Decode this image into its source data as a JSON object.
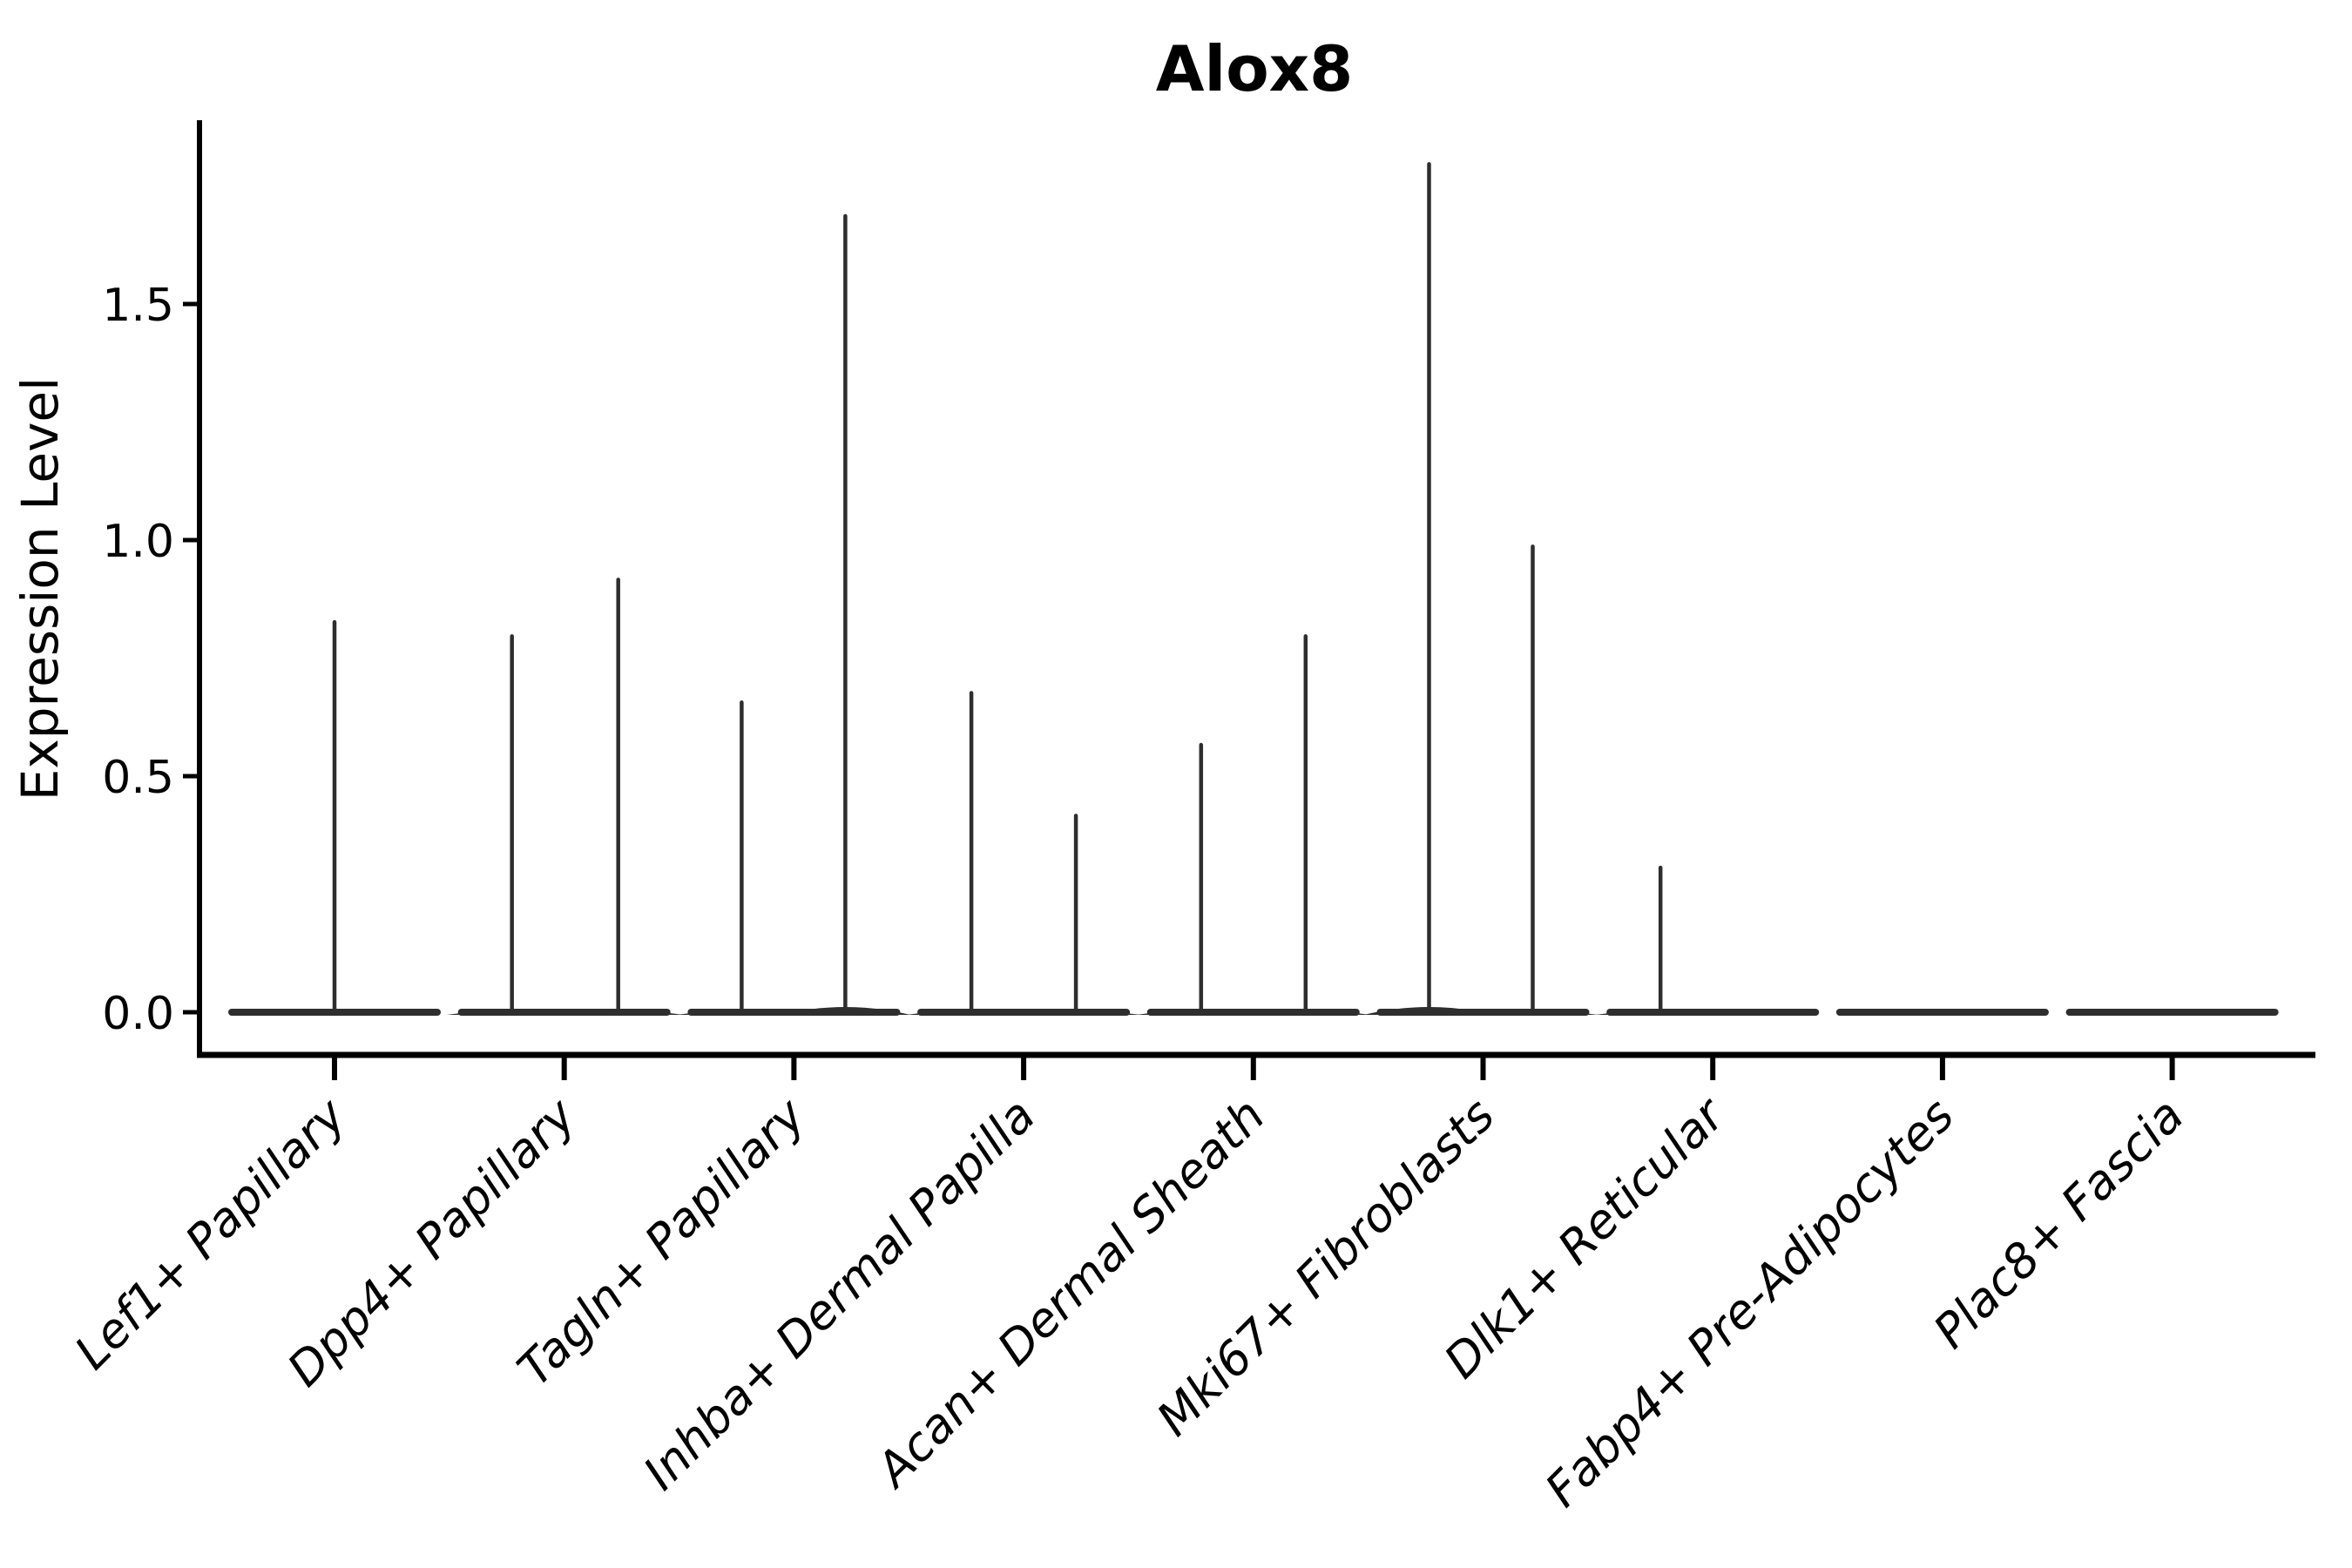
{
  "chart_data": {
    "type": "violin",
    "title": "Alox8",
    "ylabel": "Expression Level",
    "xlabel": "",
    "ylim": [
      -0.09,
      1.89
    ],
    "ytick_values": [
      0.0,
      0.5,
      1.0,
      1.5
    ],
    "ytick_labels": [
      "0.0",
      "0.5",
      "1.0",
      "1.5"
    ],
    "grid": false,
    "legend": "none",
    "description": "Violin plot of Alox8 expression per fibroblast cluster; density is concentrated at 0 (flat body) with thin spikes reaching the maximum expression of each violin. Most clusters contain two side-by-side violins (dx = horizontal offset in px from the category tick).",
    "categories": [
      {
        "label": "Lef1+ Papillary",
        "spikes": [
          {
            "dx": 0,
            "max": 0.83
          }
        ]
      },
      {
        "label": "Dpp4+ Papillary",
        "spikes": [
          {
            "dx": -60,
            "max": 0.8
          },
          {
            "dx": 62,
            "max": 0.92
          }
        ]
      },
      {
        "label": "Tagln+ Papillary",
        "spikes": [
          {
            "dx": -60,
            "max": 0.66
          },
          {
            "dx": 59,
            "max": 1.69
          }
        ]
      },
      {
        "label": "Inhba+ Dermal Papilla",
        "spikes": [
          {
            "dx": -60,
            "max": 0.68
          },
          {
            "dx": 60,
            "max": 0.42
          }
        ]
      },
      {
        "label": "Acan+ Dermal Sheath",
        "spikes": [
          {
            "dx": -60,
            "max": 0.57
          },
          {
            "dx": 60,
            "max": 0.8
          }
        ]
      },
      {
        "label": "Mki67+ Fibroblasts",
        "spikes": [
          {
            "dx": -62,
            "max": 1.8
          },
          {
            "dx": 57,
            "max": 0.99
          }
        ]
      },
      {
        "label": "Dlk1+ Reticular",
        "spikes": [
          {
            "dx": -60,
            "max": 0.31
          }
        ]
      },
      {
        "label": "Fabp4+ Pre-Adipocytes",
        "spikes": []
      },
      {
        "label": "Plac8+ Fascia",
        "spikes": []
      }
    ],
    "colors": {
      "violin": "#2e2e2e",
      "spine": "#000000",
      "text": "#000000",
      "background": "#ffffff"
    }
  }
}
